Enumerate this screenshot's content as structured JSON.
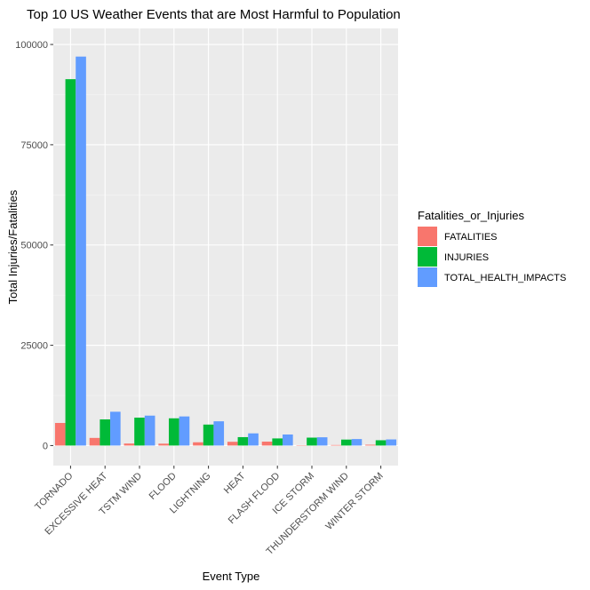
{
  "chart_data": {
    "type": "bar",
    "title": "Top 10 US Weather Events that are Most Harmful to Population",
    "xlabel": "Event Type",
    "ylabel": "Total Injuries/Fatalities",
    "ylim": [
      -5000,
      104000
    ],
    "yticks": [
      0,
      25000,
      50000,
      75000,
      100000
    ],
    "ytick_labels": [
      "0",
      "25000",
      "50000",
      "75000",
      "100000"
    ],
    "grid": true,
    "legend_position": "right",
    "legend_title": "Fatalities_or_Injuries",
    "categories": [
      "TORNADO",
      "EXCESSIVE HEAT",
      "TSTM WIND",
      "FLOOD",
      "LIGHTNING",
      "HEAT",
      "FLASH FLOOD",
      "ICE STORM",
      "THUNDERSTORM WIND",
      "WINTER STORM"
    ],
    "series": [
      {
        "name": "FATALITIES",
        "color": "#F8766D",
        "values": [
          5633,
          1903,
          504,
          470,
          816,
          937,
          978,
          89,
          133,
          206
        ]
      },
      {
        "name": "INJURIES",
        "color": "#00BA38",
        "values": [
          91346,
          6525,
          6957,
          6789,
          5230,
          2100,
          1777,
          1975,
          1488,
          1321
        ]
      },
      {
        "name": "TOTAL_HEALTH_IMPACTS",
        "color": "#619CFF",
        "values": [
          96979,
          8428,
          7461,
          7259,
          6046,
          3037,
          2755,
          2064,
          1621,
          1527
        ]
      }
    ]
  }
}
